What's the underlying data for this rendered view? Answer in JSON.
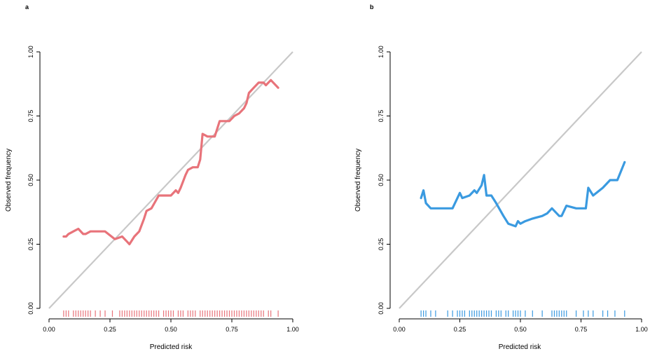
{
  "figure": {
    "panels": [
      {
        "label": "a",
        "xlabel": "Predicted risk",
        "ylabel": "Observed frequency",
        "xticks": [
          "0.00",
          "0.25",
          "0.50",
          "0.75",
          "1.00"
        ],
        "yticks": [
          "0.00",
          "0.25",
          "0.50",
          "0.75",
          "1.00"
        ]
      },
      {
        "label": "b",
        "xlabel": "Predicted risk",
        "ylabel": "Observed frequency",
        "xticks": [
          "0.00",
          "0.25",
          "0.50",
          "0.75",
          "1.00"
        ],
        "yticks": [
          "0.00",
          "0.25",
          "0.50",
          "0.75",
          "1.00"
        ]
      }
    ]
  },
  "chart_data": [
    {
      "type": "line",
      "panel": "a",
      "xlabel": "Predicted risk",
      "ylabel": "Observed frequency",
      "xlim": [
        0,
        1
      ],
      "ylim": [
        0,
        1
      ],
      "reference_line": {
        "x": [
          0,
          1
        ],
        "y": [
          0,
          1
        ],
        "color": "#c8c8c8"
      },
      "series": [
        {
          "color": "#e8737a",
          "x": [
            0.06,
            0.07,
            0.08,
            0.1,
            0.12,
            0.14,
            0.15,
            0.17,
            0.2,
            0.23,
            0.27,
            0.3,
            0.32,
            0.33,
            0.35,
            0.37,
            0.39,
            0.4,
            0.42,
            0.45,
            0.48,
            0.5,
            0.52,
            0.53,
            0.54,
            0.56,
            0.57,
            0.59,
            0.61,
            0.62,
            0.63,
            0.65,
            0.67,
            0.68,
            0.7,
            0.72,
            0.74,
            0.76,
            0.78,
            0.8,
            0.81,
            0.82,
            0.84,
            0.86,
            0.88,
            0.89,
            0.91,
            0.94
          ],
          "y": [
            0.28,
            0.28,
            0.29,
            0.3,
            0.31,
            0.29,
            0.29,
            0.3,
            0.3,
            0.3,
            0.27,
            0.28,
            0.26,
            0.25,
            0.28,
            0.3,
            0.35,
            0.38,
            0.39,
            0.44,
            0.44,
            0.44,
            0.46,
            0.45,
            0.47,
            0.52,
            0.54,
            0.55,
            0.55,
            0.58,
            0.68,
            0.67,
            0.67,
            0.67,
            0.73,
            0.73,
            0.73,
            0.75,
            0.76,
            0.78,
            0.8,
            0.84,
            0.86,
            0.88,
            0.88,
            0.87,
            0.89,
            0.86
          ]
        }
      ],
      "rug": {
        "color": "#e8737a",
        "x": [
          0.06,
          0.07,
          0.08,
          0.1,
          0.11,
          0.12,
          0.13,
          0.14,
          0.15,
          0.16,
          0.17,
          0.19,
          0.21,
          0.23,
          0.26,
          0.29,
          0.3,
          0.31,
          0.32,
          0.33,
          0.34,
          0.35,
          0.36,
          0.37,
          0.38,
          0.39,
          0.4,
          0.41,
          0.42,
          0.43,
          0.44,
          0.45,
          0.47,
          0.48,
          0.49,
          0.5,
          0.51,
          0.53,
          0.54,
          0.55,
          0.57,
          0.58,
          0.59,
          0.6,
          0.62,
          0.63,
          0.64,
          0.65,
          0.66,
          0.67,
          0.68,
          0.69,
          0.7,
          0.71,
          0.72,
          0.73,
          0.74,
          0.75,
          0.76,
          0.77,
          0.78,
          0.79,
          0.8,
          0.81,
          0.82,
          0.83,
          0.84,
          0.85,
          0.86,
          0.87,
          0.88,
          0.9,
          0.91,
          0.94
        ]
      }
    },
    {
      "type": "line",
      "panel": "b",
      "xlabel": "Predicted risk",
      "ylabel": "Observed frequency",
      "xlim": [
        0,
        1
      ],
      "ylim": [
        0,
        1
      ],
      "reference_line": {
        "x": [
          0,
          1
        ],
        "y": [
          0,
          1
        ],
        "color": "#c8c8c8"
      },
      "series": [
        {
          "color": "#3a9ae0",
          "x": [
            0.09,
            0.1,
            0.11,
            0.13,
            0.15,
            0.2,
            0.22,
            0.25,
            0.26,
            0.29,
            0.31,
            0.32,
            0.34,
            0.35,
            0.36,
            0.38,
            0.4,
            0.43,
            0.45,
            0.48,
            0.49,
            0.5,
            0.52,
            0.55,
            0.59,
            0.61,
            0.63,
            0.66,
            0.67,
            0.69,
            0.73,
            0.77,
            0.78,
            0.8,
            0.84,
            0.87,
            0.9,
            0.93
          ],
          "y": [
            0.43,
            0.46,
            0.41,
            0.39,
            0.39,
            0.39,
            0.39,
            0.45,
            0.43,
            0.44,
            0.46,
            0.45,
            0.48,
            0.52,
            0.44,
            0.44,
            0.41,
            0.36,
            0.33,
            0.32,
            0.34,
            0.33,
            0.34,
            0.35,
            0.36,
            0.37,
            0.39,
            0.36,
            0.36,
            0.4,
            0.39,
            0.39,
            0.47,
            0.44,
            0.47,
            0.5,
            0.5,
            0.57
          ]
        }
      ],
      "rug": {
        "color": "#3a9ae0",
        "x": [
          0.09,
          0.1,
          0.11,
          0.13,
          0.15,
          0.2,
          0.22,
          0.24,
          0.25,
          0.26,
          0.27,
          0.29,
          0.3,
          0.31,
          0.32,
          0.33,
          0.34,
          0.35,
          0.36,
          0.37,
          0.38,
          0.4,
          0.41,
          0.42,
          0.44,
          0.45,
          0.47,
          0.48,
          0.49,
          0.5,
          0.52,
          0.55,
          0.59,
          0.63,
          0.64,
          0.65,
          0.66,
          0.67,
          0.68,
          0.69,
          0.73,
          0.76,
          0.78,
          0.8,
          0.84,
          0.86,
          0.89,
          0.93
        ]
      }
    }
  ]
}
